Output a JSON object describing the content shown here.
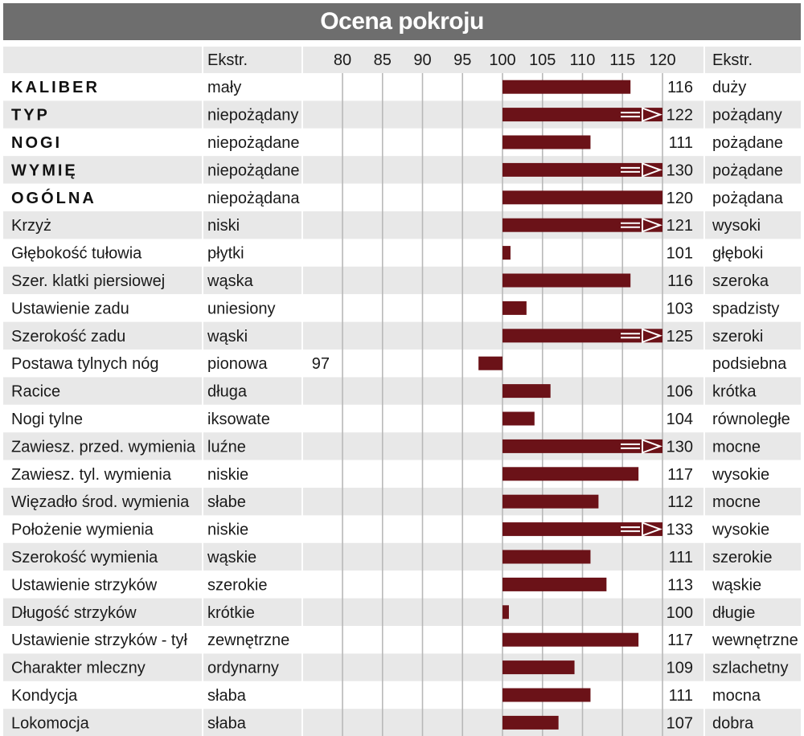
{
  "title": "Ocena pokroju",
  "header": {
    "ext_left": "Ekstr.",
    "ext_right": "Ekstr."
  },
  "colors": {
    "bar": "#6b1218",
    "band": "#e8e8e8",
    "header_bg": "#6e6e6e",
    "grid": "#b8b8b8",
    "divider": "#ffffff"
  },
  "chart_data": {
    "type": "bar",
    "orientation": "horizontal",
    "title": "Ocena pokroju",
    "baseline": 100,
    "xlim": [
      80,
      120
    ],
    "xticks": [
      80,
      85,
      90,
      95,
      100,
      105,
      110,
      115,
      120
    ],
    "grid": true,
    "overflow_marker": "arrow at 120 for values above 120",
    "rows": [
      {
        "label": "KALIBER",
        "bold": true,
        "left": "mały",
        "value": 116,
        "right": "duży"
      },
      {
        "label": "TYP",
        "bold": true,
        "left": "niepożądany",
        "value": 122,
        "right": "pożądany"
      },
      {
        "label": "NOGI",
        "bold": true,
        "left": "niepożądane",
        "value": 111,
        "right": "pożądane"
      },
      {
        "label": "WYMIĘ",
        "bold": true,
        "left": "niepożądane",
        "value": 130,
        "right": "pożądane"
      },
      {
        "label": "OGÓLNA",
        "bold": true,
        "left": "niepożądana",
        "value": 120,
        "right": "pożądana"
      },
      {
        "label": "Krzyż",
        "bold": false,
        "left": "niski",
        "value": 121,
        "right": "wysoki"
      },
      {
        "label": "Głębokość tułowia",
        "bold": false,
        "left": "płytki",
        "value": 101,
        "right": "głęboki"
      },
      {
        "label": "Szer. klatki piersiowej",
        "bold": false,
        "left": "wąska",
        "value": 116,
        "right": "szeroka"
      },
      {
        "label": "Ustawienie zadu",
        "bold": false,
        "left": "uniesiony",
        "value": 103,
        "right": "spadzisty"
      },
      {
        "label": "Szerokość zadu",
        "bold": false,
        "left": "wąski",
        "value": 125,
        "right": "szeroki"
      },
      {
        "label": "Postawa tylnych nóg",
        "bold": false,
        "left": "pionowa",
        "value": 97,
        "right": "podsiebna"
      },
      {
        "label": "Racice",
        "bold": false,
        "left": "długa",
        "value": 106,
        "right": "krótka"
      },
      {
        "label": "Nogi tylne",
        "bold": false,
        "left": "iksowate",
        "value": 104,
        "right": "równoległe"
      },
      {
        "label": "Zawiesz. przed. wymienia",
        "bold": false,
        "left": "luźne",
        "value": 130,
        "right": "mocne"
      },
      {
        "label": "Zawiesz. tyl. wymienia",
        "bold": false,
        "left": "niskie",
        "value": 117,
        "right": "wysokie"
      },
      {
        "label": "Więzadło środ. wymienia",
        "bold": false,
        "left": "słabe",
        "value": 112,
        "right": "mocne"
      },
      {
        "label": "Położenie wymienia",
        "bold": false,
        "left": "niskie",
        "value": 133,
        "right": "wysokie"
      },
      {
        "label": "Szerokość wymienia",
        "bold": false,
        "left": "wąskie",
        "value": 111,
        "right": "szerokie"
      },
      {
        "label": "Ustawienie strzyków",
        "bold": false,
        "left": "szerokie",
        "value": 113,
        "right": "wąskie"
      },
      {
        "label": "Długość strzyków",
        "bold": false,
        "left": "krótkie",
        "value": 100,
        "right": "długie"
      },
      {
        "label": "Ustawienie strzyków - tył",
        "bold": false,
        "left": "zewnętrzne",
        "value": 117,
        "right": "wewnętrzne"
      },
      {
        "label": "Charakter mleczny",
        "bold": false,
        "left": "ordynarny",
        "value": 109,
        "right": "szlachetny"
      },
      {
        "label": "Kondycja",
        "bold": false,
        "left": "słaba",
        "value": 111,
        "right": "mocna"
      },
      {
        "label": "Lokomocja",
        "bold": false,
        "left": "słaba",
        "value": 107,
        "right": "dobra"
      }
    ]
  }
}
